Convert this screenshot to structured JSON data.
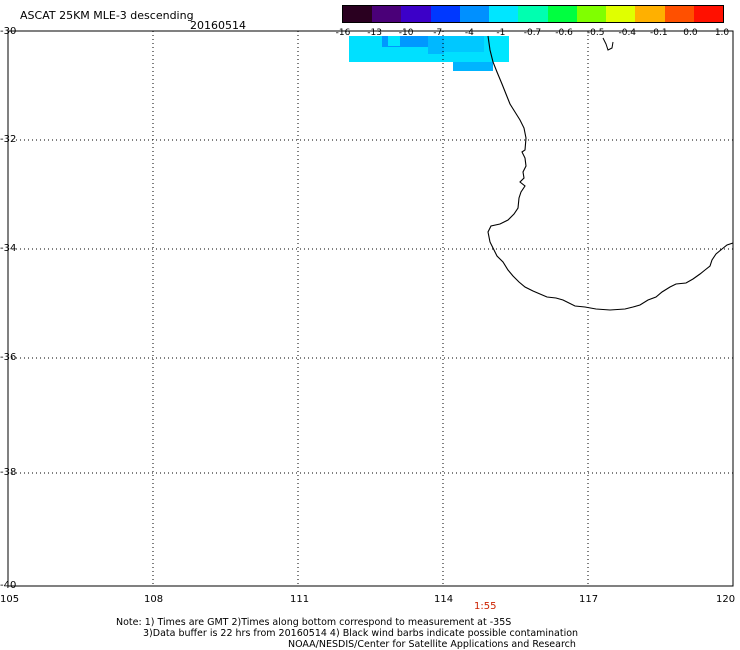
{
  "header": {
    "product": "ASCAT 25KM MLE-3 descending",
    "date": "20160514"
  },
  "colorbar": {
    "labels": [
      "-16",
      "-13",
      "-10",
      "-7",
      "-4",
      "-1",
      "-0.7",
      "-0.6",
      "-0.5",
      "-0.4",
      "-0.1",
      "0.0",
      "1.0"
    ],
    "colors": [
      "#2a0020",
      "#4a0078",
      "#3c00c8",
      "#0038ff",
      "#0090ff",
      "#00e6ff",
      "#00ffb0",
      "#00ff40",
      "#80ff00",
      "#e0ff00",
      "#ffb000",
      "#ff5000",
      "#ff1000"
    ]
  },
  "axes": {
    "lat_labels": [
      "-30",
      "-32",
      "-34",
      "-36",
      "-38",
      "-40"
    ],
    "lon_labels": [
      "105",
      "108",
      "111",
      "114",
      "117",
      "120"
    ],
    "lon_range": [
      105,
      120
    ],
    "lat_range": [
      -30,
      -40
    ],
    "grid": "dotted"
  },
  "time_marker": {
    "text": "1:55",
    "color": "#cc2200"
  },
  "notes": {
    "line1": "Note: 1) Times are GMT 2)Times along bottom correspond to measurement at -35S",
    "line2": "3)Data buffer is 22 hrs from 20160514 4) Black wind barbs indicate possible contamination",
    "line3": "NOAA/NESDIS/Center for Satellite Applications and Research"
  },
  "data_patch": {
    "dominant_color": "#00e0ff",
    "secondary_color": "#00a8ff"
  }
}
